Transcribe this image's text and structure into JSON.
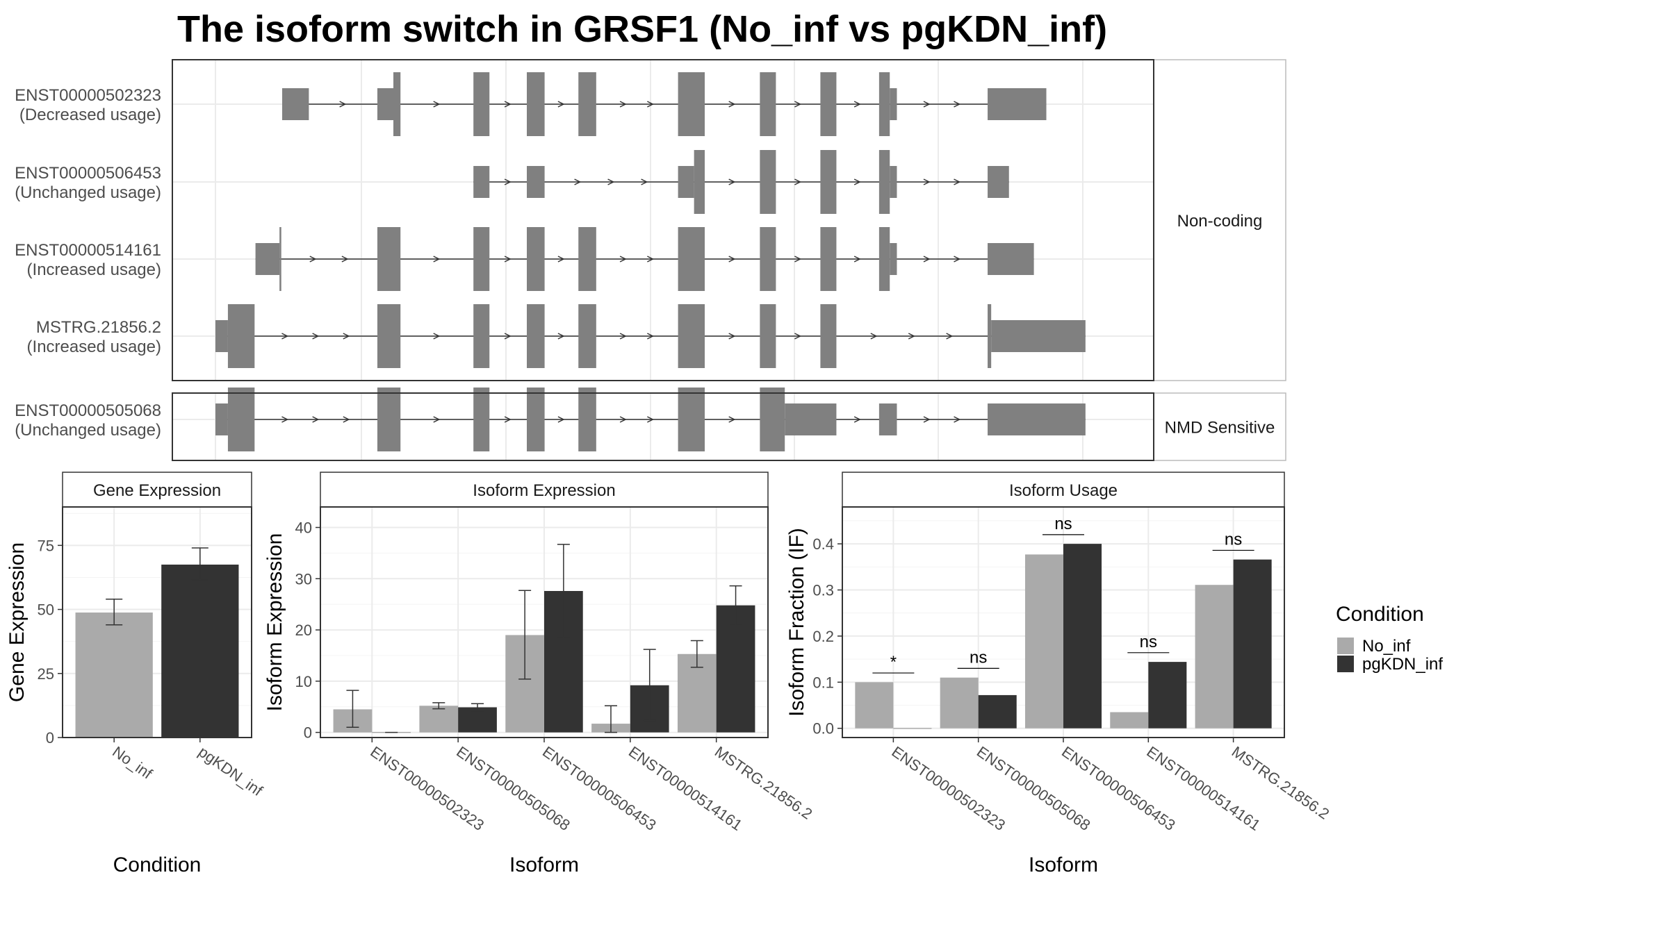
{
  "title": "The isoform switch in GRSF1 (No_inf vs pgKDN_inf)",
  "colors": {
    "No_inf": "#aaaaaa",
    "pgKDN_inf": "#333333",
    "exon": "#808080"
  },
  "structure": {
    "coord_range": [
      0,
      1000
    ],
    "panels": [
      {
        "label": "Non-coding",
        "transcripts": [
          {
            "id": "ENST00000502323",
            "usage": "(Decreased usage)",
            "exons": [
              [
                75,
                105,
                "thin"
              ],
              [
                182,
                200,
                "thin"
              ],
              [
                200,
                208,
                "thick"
              ],
              [
                290,
                308,
                "thick"
              ],
              [
                350,
                370,
                "thick"
              ],
              [
                408,
                428,
                "thick"
              ],
              [
                520,
                550,
                "thick"
              ],
              [
                612,
                630,
                "thick"
              ],
              [
                680,
                698,
                "thick"
              ],
              [
                746,
                758,
                "thick"
              ],
              [
                758,
                766,
                "thin"
              ],
              [
                868,
                934,
                "thin"
              ]
            ]
          },
          {
            "id": "ENST00000506453",
            "usage": "(Unchanged usage)",
            "exons": [
              [
                290,
                308,
                "thin"
              ],
              [
                350,
                370,
                "thin"
              ],
              [
                520,
                538,
                "thin"
              ],
              [
                538,
                550,
                "thick"
              ],
              [
                612,
                630,
                "thick"
              ],
              [
                680,
                698,
                "thick"
              ],
              [
                746,
                758,
                "thick"
              ],
              [
                758,
                766,
                "thin"
              ],
              [
                868,
                892,
                "thin"
              ]
            ]
          },
          {
            "id": "ENST00000514161",
            "usage": "(Increased usage)",
            "exons": [
              [
                45,
                72,
                "thin"
              ],
              [
                72,
                74,
                "thick"
              ],
              [
                182,
                208,
                "thick"
              ],
              [
                290,
                308,
                "thick"
              ],
              [
                350,
                370,
                "thick"
              ],
              [
                408,
                428,
                "thick"
              ],
              [
                520,
                550,
                "thick"
              ],
              [
                612,
                630,
                "thick"
              ],
              [
                680,
                698,
                "thick"
              ],
              [
                746,
                758,
                "thick"
              ],
              [
                758,
                766,
                "thin"
              ],
              [
                868,
                920,
                "thin"
              ]
            ]
          },
          {
            "id": "MSTRG.21856.2",
            "usage": "(Increased usage)",
            "exons": [
              [
                0,
                14,
                "thin"
              ],
              [
                14,
                44,
                "thick"
              ],
              [
                182,
                208,
                "thick"
              ],
              [
                290,
                308,
                "thick"
              ],
              [
                350,
                370,
                "thick"
              ],
              [
                408,
                428,
                "thick"
              ],
              [
                520,
                550,
                "thick"
              ],
              [
                612,
                630,
                "thick"
              ],
              [
                680,
                698,
                "thick"
              ],
              [
                868,
                872,
                "thick"
              ],
              [
                872,
                978,
                "thin"
              ]
            ]
          }
        ]
      },
      {
        "label": "NMD Sensitive",
        "transcripts": [
          {
            "id": "ENST00000505068",
            "usage": "(Unchanged usage)",
            "exons": [
              [
                0,
                14,
                "thin"
              ],
              [
                14,
                44,
                "thick"
              ],
              [
                182,
                208,
                "thick"
              ],
              [
                290,
                308,
                "thick"
              ],
              [
                350,
                370,
                "thick"
              ],
              [
                408,
                428,
                "thick"
              ],
              [
                520,
                550,
                "thick"
              ],
              [
                612,
                640,
                "thick"
              ],
              [
                640,
                698,
                "thin"
              ],
              [
                746,
                766,
                "thin"
              ],
              [
                868,
                978,
                "thin"
              ]
            ]
          }
        ]
      }
    ]
  },
  "chart_data": [
    {
      "type": "bar",
      "title": "Gene Expression",
      "xlabel": "Condition",
      "ylabel": "Gene Expression",
      "ylim": [
        0,
        90
      ],
      "yticks": [
        0,
        25,
        50,
        75
      ],
      "categories": [
        "No_inf",
        "pgKDN_inf"
      ],
      "values": [
        48.8,
        67.5
      ],
      "error": [
        [
          44.0,
          54.0
        ],
        [
          61.5,
          74.0
        ]
      ]
    },
    {
      "type": "bar",
      "title": "Isoform Expression",
      "xlabel": "Isoform",
      "ylabel": "Isoform Expression",
      "ylim": [
        -1,
        44
      ],
      "yticks": [
        0,
        10,
        20,
        30,
        40
      ],
      "categories": [
        "ENST00000502323",
        "ENST00000505068",
        "ENST00000506453",
        "ENST00000514161",
        "MSTRG.21856.2"
      ],
      "series": [
        {
          "name": "No_inf",
          "values": [
            4.5,
            5.2,
            19.0,
            1.7,
            15.3
          ],
          "error": [
            [
              1.0,
              8.2
            ],
            [
              4.6,
              5.8
            ],
            [
              10.4,
              27.7
            ],
            [
              0.0,
              5.2
            ],
            [
              12.7,
              17.9
            ]
          ]
        },
        {
          "name": "pgKDN_inf",
          "values": [
            0.0,
            4.9,
            27.6,
            9.2,
            24.8
          ],
          "error": [
            [
              0.0,
              0.0
            ],
            [
              4.2,
              5.6
            ],
            [
              18.5,
              36.7
            ],
            [
              2.3,
              16.2
            ],
            [
              20.9,
              28.6
            ]
          ]
        }
      ]
    },
    {
      "type": "bar",
      "title": "Isoform Usage",
      "xlabel": "Isoform",
      "ylabel": "Isoform Fraction (IF)",
      "ylim": [
        -0.02,
        0.48
      ],
      "yticks": [
        0.0,
        0.1,
        0.2,
        0.3,
        0.4
      ],
      "categories": [
        "ENST00000502323",
        "ENST00000505068",
        "ENST00000506453",
        "ENST00000514161",
        "MSTRG.21856.2"
      ],
      "series": [
        {
          "name": "No_inf",
          "values": [
            0.1,
            0.11,
            0.377,
            0.035,
            0.311
          ]
        },
        {
          "name": "pgKDN_inf",
          "values": [
            0.0,
            0.072,
            0.4,
            0.144,
            0.366
          ]
        }
      ],
      "annotations": [
        {
          "category": "ENST00000502323",
          "label": "*",
          "y": 0.12
        },
        {
          "category": "ENST00000505068",
          "label": "ns",
          "y": 0.13
        },
        {
          "category": "ENST00000506453",
          "label": "ns",
          "y": 0.42
        },
        {
          "category": "ENST00000514161",
          "label": "ns",
          "y": 0.164
        },
        {
          "category": "MSTRG.21856.2",
          "label": "ns",
          "y": 0.386
        }
      ]
    }
  ],
  "legend": {
    "title": "Condition",
    "placement": "right",
    "items": [
      "No_inf",
      "pgKDN_inf"
    ]
  }
}
